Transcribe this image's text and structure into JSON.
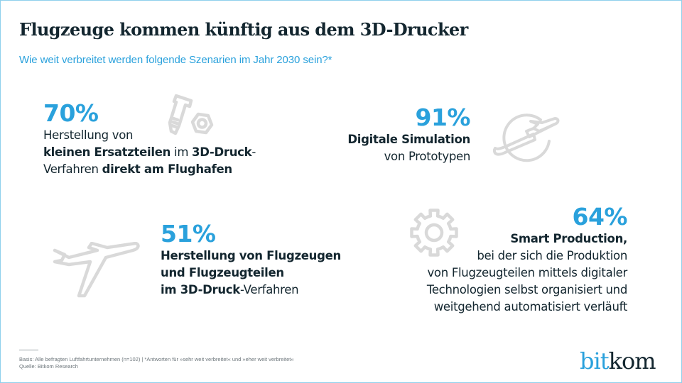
{
  "header": {
    "title": "Flugzeuge kommen künftig aus dem 3D-Drucker",
    "subtitle": "Wie weit verbreitet werden folgende Szenarien im Jahr 2030 sein?*"
  },
  "colors": {
    "accent": "#2aa1dc",
    "text": "#13262f",
    "icon": "#d9d9d9",
    "border": "#8fd0ec"
  },
  "chart_data": {
    "type": "table",
    "title": "Flugzeuge kommen künftig aus dem 3D-Drucker",
    "subtitle": "Wie weit verbreitet werden folgende Szenarien im Jahr 2030 sein?*",
    "unit": "%",
    "items": [
      {
        "label": "Herstellung von kleinen Ersatzteilen im 3D-Druck-Verfahren direkt am Flughafen",
        "value": 70,
        "icon": "bolt-nut-icon"
      },
      {
        "label": "Digitale Simulation von Prototypen",
        "value": 91,
        "icon": "globe-plane-icon"
      },
      {
        "label": "Herstellung von Flugzeugen und Flugzeugteilen im 3D-Druck-Verfahren",
        "value": 51,
        "icon": "airplane-icon"
      },
      {
        "label": "Smart Production, bei der sich die Produktion von Flugzeugteilen mittels digitaler Technologien selbst organisiert und weitgehend automatisiert verläuft",
        "value": 64,
        "icon": "gear-icon"
      }
    ]
  },
  "blocks": [
    {
      "percent": "70%",
      "lines": [
        {
          "segments": [
            {
              "text": "Herstellung von",
              "bold": false
            }
          ]
        },
        {
          "segments": [
            {
              "text": "kleinen Ersatzteilen",
              "bold": true
            },
            {
              "text": " im ",
              "bold": false
            },
            {
              "text": "3D-Druck",
              "bold": true
            },
            {
              "text": "-",
              "bold": false
            }
          ]
        },
        {
          "segments": [
            {
              "text": "Verfahren ",
              "bold": false
            },
            {
              "text": "direkt am Flughafen",
              "bold": true
            }
          ]
        }
      ]
    },
    {
      "percent": "91%",
      "lines": [
        {
          "segments": [
            {
              "text": "Digitale Simulation",
              "bold": true
            }
          ]
        },
        {
          "segments": [
            {
              "text": "von Prototypen",
              "bold": false
            }
          ]
        }
      ]
    },
    {
      "percent": "51%",
      "lines": [
        {
          "segments": [
            {
              "text": "Herstellung von Flugzeugen",
              "bold": true
            }
          ]
        },
        {
          "segments": [
            {
              "text": "und Flugzeugteilen",
              "bold": true
            }
          ]
        },
        {
          "segments": [
            {
              "text": "im 3D-Druck",
              "bold": true
            },
            {
              "text": "-Verfahren",
              "bold": false
            }
          ]
        }
      ]
    },
    {
      "percent": "64%",
      "lines": [
        {
          "segments": [
            {
              "text": "Smart Production,",
              "bold": true
            }
          ]
        },
        {
          "segments": [
            {
              "text": "bei der sich die Produktion",
              "bold": false
            }
          ]
        },
        {
          "segments": [
            {
              "text": "von Flugzeugteilen mittels digitaler",
              "bold": false
            }
          ]
        },
        {
          "segments": [
            {
              "text": "Technologien selbst organisiert und",
              "bold": false
            }
          ]
        },
        {
          "segments": [
            {
              "text": "weitgehend automatisiert verläuft",
              "bold": false
            }
          ]
        }
      ]
    }
  ],
  "footer": {
    "basis": "Basis: Alle befragten Luftfahrtunternehmen (n=102) | *Antworten für »sehr weit verbreitet« und »eher weit verbreitet«",
    "source": "Quelle: Bitkom Research"
  },
  "logo": {
    "part1": "bit",
    "part2": "kom"
  }
}
